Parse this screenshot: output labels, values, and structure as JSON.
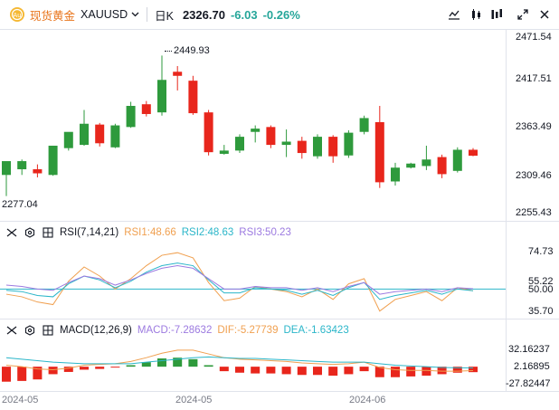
{
  "header": {
    "name": "现货黄金",
    "symbol": "XAUUSD",
    "period": "日K",
    "price": "2326.70",
    "change": "-6.03",
    "change_pct": "-0.26%"
  },
  "icons": [
    "gold-logo-icon",
    "chevron-down-icon",
    "indicator-icon",
    "compare-icon",
    "settings-icon",
    "fullscreen-icon",
    "close-icon",
    "eye-icon",
    "settings-icon",
    "close-icon"
  ],
  "colors": {
    "up": "#26a69a",
    "down": "#ef5350",
    "candle_up": "#2e9a3c",
    "candle_down": "#e8261c",
    "brand": "#e8741b"
  },
  "rsi_legend": {
    "name": "RSI(7,14,21)",
    "rsi1": "RSI1:48.66",
    "rsi2": "RSI2:48.63",
    "rsi3": "RSI3:50.23"
  },
  "macd_legend": {
    "name": "MACD(12,26,9)",
    "macd": "MACD:-7.28632",
    "dif": "DIF:-5.27739",
    "dea": "DEA:-1.63423"
  },
  "chart_data": [
    {
      "type": "candlestick",
      "title": "现货黄金 XAUUSD 日K",
      "price_axis_ticks": [
        "2471.54",
        "2417.51",
        "2363.49",
        "2309.46",
        "2255.43"
      ],
      "ylim": [
        2255.43,
        2471.54
      ],
      "annotations": [
        {
          "label": "2449.93",
          "kind": "high",
          "candle_index": 10
        },
        {
          "label": "2277.04",
          "kind": "low",
          "candle_index": 0
        }
      ],
      "x_tick_labels": [
        "2024-05",
        "2024-05",
        "2024-06"
      ],
      "candles": [
        {
          "o": 2303,
          "h": 2319,
          "l": 2277,
          "c": 2320
        },
        {
          "o": 2310,
          "h": 2322,
          "l": 2303,
          "c": 2320
        },
        {
          "o": 2310,
          "h": 2316,
          "l": 2300,
          "c": 2305
        },
        {
          "o": 2303,
          "h": 2339,
          "l": 2302,
          "c": 2339
        },
        {
          "o": 2336,
          "h": 2354,
          "l": 2333,
          "c": 2356
        },
        {
          "o": 2340,
          "h": 2383,
          "l": 2339,
          "c": 2366
        },
        {
          "o": 2365,
          "h": 2367,
          "l": 2338,
          "c": 2342
        },
        {
          "o": 2337,
          "h": 2366,
          "l": 2336,
          "c": 2364
        },
        {
          "o": 2362,
          "h": 2393,
          "l": 2361,
          "c": 2388
        },
        {
          "o": 2390,
          "h": 2394,
          "l": 2375,
          "c": 2378
        },
        {
          "o": 2380,
          "h": 2449.93,
          "l": 2376,
          "c": 2420
        },
        {
          "o": 2430,
          "h": 2437,
          "l": 2407,
          "c": 2425
        },
        {
          "o": 2419,
          "h": 2425,
          "l": 2377,
          "c": 2379
        },
        {
          "o": 2380,
          "h": 2383,
          "l": 2327,
          "c": 2331
        },
        {
          "o": 2329,
          "h": 2340,
          "l": 2328,
          "c": 2333
        },
        {
          "o": 2333,
          "h": 2353,
          "l": 2330,
          "c": 2350
        },
        {
          "o": 2356,
          "h": 2364,
          "l": 2343,
          "c": 2360
        },
        {
          "o": 2362,
          "h": 2364,
          "l": 2336,
          "c": 2340
        },
        {
          "o": 2340,
          "h": 2359,
          "l": 2325,
          "c": 2344
        },
        {
          "o": 2345,
          "h": 2350,
          "l": 2323,
          "c": 2330
        },
        {
          "o": 2326,
          "h": 2353,
          "l": 2323,
          "c": 2350
        },
        {
          "o": 2350,
          "h": 2352,
          "l": 2318,
          "c": 2326
        },
        {
          "o": 2327,
          "h": 2358,
          "l": 2324,
          "c": 2355
        },
        {
          "o": 2356,
          "h": 2376,
          "l": 2353,
          "c": 2373
        },
        {
          "o": 2368,
          "h": 2388,
          "l": 2287,
          "c": 2294
        },
        {
          "o": 2295,
          "h": 2318,
          "l": 2290,
          "c": 2312
        },
        {
          "o": 2312,
          "h": 2318,
          "l": 2311,
          "c": 2317
        },
        {
          "o": 2314,
          "h": 2339,
          "l": 2309,
          "c": 2322
        },
        {
          "o": 2325,
          "h": 2328,
          "l": 2299,
          "c": 2304
        },
        {
          "o": 2308,
          "h": 2337,
          "l": 2306,
          "c": 2334
        },
        {
          "o": 2334,
          "h": 2336,
          "l": 2326,
          "c": 2326.7
        }
      ]
    },
    {
      "type": "line",
      "title": "RSI(7,14,21)",
      "y_ticks": [
        "74.73",
        "55.22",
        "50.00",
        "35.70"
      ],
      "ylim": [
        30,
        90
      ],
      "reference_line": 50,
      "series": [
        {
          "name": "RSI1",
          "color": "#f0a050",
          "values": [
            46,
            44,
            40,
            38,
            56,
            67,
            60,
            50,
            58,
            68,
            76,
            78,
            74,
            55,
            41,
            43,
            52,
            50,
            48,
            44,
            50,
            42,
            54,
            58,
            33,
            42,
            45,
            48,
            41,
            51,
            48.66
          ]
        },
        {
          "name": "RSI2",
          "color": "#2bb6c9",
          "values": [
            49,
            48,
            45,
            44,
            54,
            60,
            57,
            51,
            56,
            63,
            68,
            70,
            68,
            57,
            47,
            47,
            51,
            50,
            49,
            46,
            49,
            45,
            51,
            55,
            42,
            45,
            47,
            49,
            46,
            50,
            48.63
          ]
        },
        {
          "name": "RSI3",
          "color": "#9c7ae0",
          "values": [
            53,
            52,
            50,
            49,
            55,
            60,
            58,
            53,
            57,
            62,
            66,
            68,
            66,
            58,
            50,
            50,
            52,
            51,
            51,
            49,
            51,
            48,
            52,
            55,
            46,
            48,
            49,
            50,
            48,
            51,
            50.23
          ]
        }
      ]
    },
    {
      "type": "bar",
      "title": "MACD(12,26,9)",
      "y_ticks": [
        "32.16237",
        "2.16895",
        "-27.82447"
      ],
      "ylim": [
        -30,
        40
      ],
      "series": [
        {
          "name": "MACD",
          "values": [
            -20,
            -19,
            -17,
            -10,
            -7,
            -4,
            -3,
            -1,
            2,
            6,
            11,
            12,
            10,
            2,
            -6,
            -8,
            -9,
            -9,
            -10,
            -11,
            -11,
            -12,
            -10,
            -6,
            -14,
            -14,
            -13,
            -12,
            -10,
            -8,
            -7.28632
          ]
        },
        {
          "name": "DIF",
          "color": "#f0a050",
          "values": [
            2,
            0,
            -3,
            -4,
            -2,
            2,
            3,
            4,
            7,
            12,
            18,
            22,
            22,
            17,
            12,
            10,
            9,
            8,
            7,
            5,
            4,
            3,
            4,
            6,
            -1,
            -4,
            -5,
            -5,
            -6,
            -6,
            -5.27739
          ]
        },
        {
          "name": "DEA",
          "color": "#2bb6c9",
          "values": [
            12,
            10,
            8,
            6,
            5,
            4,
            4,
            4,
            4,
            6,
            8,
            10,
            12,
            13,
            12,
            11,
            11,
            10,
            9,
            8,
            7,
            6,
            6,
            6,
            4,
            2,
            1,
            0,
            -1,
            -1.5,
            -1.63423
          ]
        }
      ]
    }
  ]
}
